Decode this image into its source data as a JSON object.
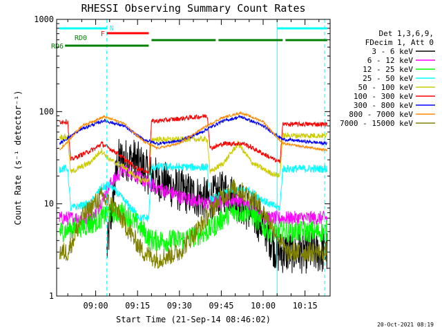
{
  "chart_data": {
    "type": "line",
    "title": "RHESSI Observing Summary Count Rates",
    "xlabel": "Start Time (21-Sep-14 08:46:02)",
    "ylabel": "Count Rate (s⁻¹ detector⁻¹)",
    "y_scale": "log",
    "ylim": [
      1,
      1000
    ],
    "y_ticks": [
      "1",
      "10",
      "100",
      "1000"
    ],
    "xlim": [
      "08:46",
      "10:24"
    ],
    "x_ticks": [
      "09:00",
      "09:15",
      "09:30",
      "09:45",
      "10:00",
      "10:15"
    ],
    "grid": false,
    "legend_header": [
      "Det 1,3,6,9,",
      "FDecim 1, Att 0"
    ],
    "legend_position": "right",
    "legend": [
      {
        "label": "3 - 6 keV",
        "color": "#000000"
      },
      {
        "label": "6 - 12 keV",
        "color": "#ff00ff"
      },
      {
        "label": "12 - 25 keV",
        "color": "#00ff00"
      },
      {
        "label": "25 - 50 keV",
        "color": "#00ffff"
      },
      {
        "label": "50 - 100 keV",
        "color": "#cccc00"
      },
      {
        "label": "100 - 300 keV",
        "color": "#ff0000"
      },
      {
        "label": "300 - 800 keV",
        "color": "#0000ff"
      },
      {
        "label": "800 - 7000 keV",
        "color": "#ff8800"
      },
      {
        "label": "7000 - 15000 keV",
        "color": "#808000"
      }
    ],
    "state_bars": [
      {
        "label": "N",
        "color": "#00ffff",
        "segments": [
          [
            "08:47",
            "09:04"
          ],
          [
            "10:05",
            "10:23"
          ]
        ]
      },
      {
        "label": "F",
        "color": "#ff0000",
        "segments": [
          [
            "09:04",
            "09:19"
          ]
        ]
      },
      {
        "label": "RD0",
        "color": "#008000",
        "segments": [
          [
            "09:20",
            "09:43"
          ],
          [
            "09:44",
            "10:07"
          ],
          [
            "10:08",
            "10:23"
          ]
        ]
      },
      {
        "label": "RD6",
        "color": "#008000",
        "segments": [
          [
            "08:49",
            "09:19"
          ]
        ]
      }
    ],
    "vertical_markers": [
      {
        "time": "09:04",
        "color": "#00ffff",
        "style": "dashed"
      },
      {
        "time": "10:05",
        "color": "#00ffff",
        "style": "solid"
      },
      {
        "time": "10:22",
        "color": "#00ffff",
        "style": "dashed"
      }
    ],
    "series_curves": [
      {
        "name": "3 - 6 keV",
        "color": "#000000",
        "points": [
          [
            "09:04",
            3.0
          ],
          [
            "09:08",
            30
          ],
          [
            "09:14",
            30
          ],
          [
            "09:20",
            20
          ],
          [
            "09:30",
            14
          ],
          [
            "09:40",
            11
          ],
          [
            "09:47",
            14
          ],
          [
            "09:52",
            10
          ],
          [
            "10:00",
            6
          ],
          [
            "10:05",
            3
          ],
          [
            "10:23",
            3
          ]
        ],
        "noise": 0.55
      },
      {
        "name": "6 - 12 keV",
        "color": "#ff00ff",
        "points": [
          [
            "08:47",
            7
          ],
          [
            "08:49",
            7
          ],
          [
            "08:59",
            7
          ],
          [
            "09:05",
            16
          ],
          [
            "09:10",
            24
          ],
          [
            "09:20",
            16
          ],
          [
            "09:30",
            12
          ],
          [
            "09:40",
            10
          ],
          [
            "09:47",
            11
          ],
          [
            "09:52",
            11
          ],
          [
            "10:00",
            7
          ],
          [
            "10:05",
            7
          ],
          [
            "10:23",
            7
          ]
        ],
        "noise": 0.18
      },
      {
        "name": "12 - 25 keV",
        "color": "#00ff00",
        "points": [
          [
            "08:47",
            5
          ],
          [
            "08:58",
            6
          ],
          [
            "09:05",
            8
          ],
          [
            "09:10",
            8
          ],
          [
            "09:15",
            6
          ],
          [
            "09:20",
            4
          ],
          [
            "09:30",
            4
          ],
          [
            "09:40",
            5
          ],
          [
            "09:48",
            8
          ],
          [
            "09:55",
            8
          ],
          [
            "10:02",
            5
          ],
          [
            "10:05",
            5
          ],
          [
            "10:23",
            5
          ]
        ],
        "noise": 0.28
      },
      {
        "name": "25 - 50 keV",
        "color": "#00ffff",
        "points": [
          [
            "08:47",
            24
          ],
          [
            "08:50",
            24
          ],
          [
            "08:51",
            9
          ],
          [
            "08:58",
            10
          ],
          [
            "09:02",
            15
          ],
          [
            "09:05",
            16
          ],
          [
            "09:10",
            11
          ],
          [
            "09:16",
            7
          ],
          [
            "09:19",
            7
          ],
          [
            "09:20",
            25
          ],
          [
            "09:40",
            25
          ],
          [
            "09:41",
            11
          ],
          [
            "09:48",
            14
          ],
          [
            "09:55",
            14
          ],
          [
            "10:02",
            10
          ],
          [
            "10:06",
            9
          ],
          [
            "10:07",
            24
          ],
          [
            "10:23",
            24
          ]
        ],
        "noise": 0.1
      },
      {
        "name": "50 - 100 keV",
        "color": "#cccc00",
        "points": [
          [
            "08:47",
            53
          ],
          [
            "08:50",
            53
          ],
          [
            "08:51",
            22
          ],
          [
            "08:58",
            28
          ],
          [
            "09:02",
            38
          ],
          [
            "09:05",
            30
          ],
          [
            "09:10",
            25
          ],
          [
            "09:16",
            18
          ],
          [
            "09:19",
            18
          ],
          [
            "09:20",
            50
          ],
          [
            "09:40",
            50
          ],
          [
            "09:41",
            22
          ],
          [
            "09:46",
            28
          ],
          [
            "09:51",
            45
          ],
          [
            "09:56",
            28
          ],
          [
            "10:02",
            22
          ],
          [
            "10:06",
            20
          ],
          [
            "10:07",
            55
          ],
          [
            "10:23",
            55
          ]
        ],
        "noise": 0.07
      },
      {
        "name": "100 - 300 keV",
        "color": "#ff0000",
        "points": [
          [
            "08:47",
            78
          ],
          [
            "08:50",
            78
          ],
          [
            "08:51",
            30
          ],
          [
            "09:00",
            40
          ],
          [
            "09:02",
            45
          ],
          [
            "09:08",
            35
          ],
          [
            "09:14",
            25
          ],
          [
            "09:19",
            22
          ],
          [
            "09:20",
            78
          ],
          [
            "09:40",
            90
          ],
          [
            "09:41",
            40
          ],
          [
            "09:46",
            45
          ],
          [
            "09:53",
            45
          ],
          [
            "10:00",
            35
          ],
          [
            "10:06",
            28
          ],
          [
            "10:07",
            73
          ],
          [
            "10:23",
            73
          ]
        ],
        "noise": 0.06
      },
      {
        "name": "300 - 800 keV",
        "color": "#0000ff",
        "points": [
          [
            "08:47",
            45
          ],
          [
            "08:55",
            65
          ],
          [
            "09:03",
            80
          ],
          [
            "09:10",
            70
          ],
          [
            "09:17",
            50
          ],
          [
            "09:22",
            45
          ],
          [
            "09:30",
            48
          ],
          [
            "09:38",
            60
          ],
          [
            "09:45",
            78
          ],
          [
            "09:52",
            88
          ],
          [
            "10:00",
            70
          ],
          [
            "10:07",
            50
          ],
          [
            "10:23",
            45
          ]
        ],
        "noise": 0.04
      },
      {
        "name": "800 - 7000 keV",
        "color": "#ff8800",
        "points": [
          [
            "08:47",
            38
          ],
          [
            "08:55",
            70
          ],
          [
            "09:03",
            88
          ],
          [
            "09:10",
            75
          ],
          [
            "09:17",
            48
          ],
          [
            "09:22",
            40
          ],
          [
            "09:30",
            45
          ],
          [
            "09:38",
            65
          ],
          [
            "09:45",
            85
          ],
          [
            "09:52",
            97
          ],
          [
            "10:00",
            78
          ],
          [
            "10:07",
            45
          ],
          [
            "10:23",
            38
          ]
        ],
        "noise": 0.03
      },
      {
        "name": "7000 - 15000 keV",
        "color": "#808000",
        "points": [
          [
            "08:47",
            3.0
          ],
          [
            "08:50",
            3.0
          ],
          [
            "08:55",
            7
          ],
          [
            "09:02",
            12
          ],
          [
            "09:07",
            9
          ],
          [
            "09:12",
            5
          ],
          [
            "09:17",
            3
          ],
          [
            "09:22",
            2.5
          ],
          [
            "09:30",
            3
          ],
          [
            "09:38",
            6
          ],
          [
            "09:45",
            12
          ],
          [
            "09:50",
            15
          ],
          [
            "09:57",
            11
          ],
          [
            "10:03",
            6
          ],
          [
            "10:08",
            3.0
          ],
          [
            "10:23",
            3.0
          ]
        ],
        "noise": 0.25
      }
    ],
    "footer": "20-Oct-2021 08:19"
  },
  "colors": {
    "axis": "#000000",
    "background": "#ffffff"
  }
}
